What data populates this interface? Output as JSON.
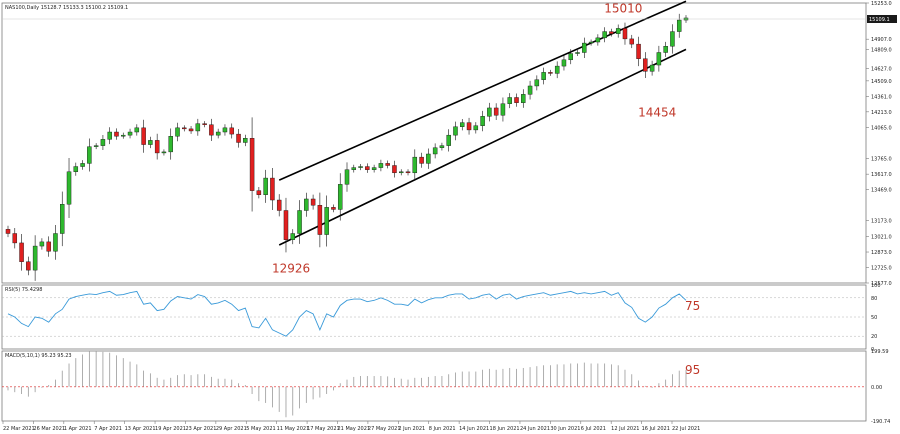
{
  "chart_data": [
    {
      "type": "candlestick",
      "header": "NAS100,Daily  15128.7 15133.3 15100.2 15109.1",
      "yticks": [
        "15253.0",
        "14907.0",
        "14809.0",
        "14627.0",
        "14509.0",
        "14361.0",
        "14213.0",
        "14065.0",
        "13765.0",
        "13617.0",
        "13469.0",
        "13173.0",
        "13021.0",
        "12873.0",
        "12725.0",
        "12577.0"
      ],
      "price_tag": "15109.1",
      "ylim": [
        12577,
        15253
      ],
      "xticks": [
        "22 Mar 2021",
        "26 Mar 2021",
        "1 Apr 2021",
        "7 Apr 2021",
        "13 Apr 2021",
        "19 Apr 2021",
        "23 Apr 2021",
        "29 Apr 2021",
        "5 May 2021",
        "11 May 2021",
        "17 May 2021",
        "21 May 2021",
        "27 May 2021",
        "2 Jun 2021",
        "8 Jun 2021",
        "14 Jun 2021",
        "18 Jun 2021",
        "24 Jun 2021",
        "30 Jun 2021",
        "6 Jul 2021",
        "12 Jul 2021",
        "16 Jul 2021",
        "22 Jul 2021"
      ],
      "closes": [
        13050,
        12960,
        12780,
        12700,
        12930,
        12970,
        12880,
        13050,
        13330,
        13640,
        13690,
        13720,
        13880,
        13890,
        13950,
        14020,
        13980,
        13990,
        14020,
        14060,
        13900,
        13940,
        13820,
        13830,
        13980,
        14060,
        14050,
        14030,
        14100,
        14090,
        13990,
        14020,
        14060,
        14000,
        13920,
        13960,
        13460,
        13420,
        13580,
        13370,
        13270,
        12990,
        13050,
        13270,
        13380,
        13320,
        13040,
        13300,
        13280,
        13520,
        13660,
        13680,
        13690,
        13660,
        13680,
        13720,
        13700,
        13630,
        13640,
        13630,
        13780,
        13720,
        13810,
        13870,
        13890,
        13990,
        14070,
        14110,
        14040,
        14080,
        14170,
        14250,
        14180,
        14290,
        14350,
        14300,
        14380,
        14460,
        14520,
        14590,
        14580,
        14650,
        14710,
        14770,
        14780,
        14870,
        14880,
        14920,
        14980,
        14960,
        15010,
        14910,
        14860,
        14720,
        14600,
        14660,
        14780,
        14840,
        14980,
        15090,
        15110
      ],
      "annotations": [
        {
          "text": "15010",
          "date_index": 90,
          "value": 15010
        },
        {
          "text": "14454",
          "date_index": 95,
          "value": 14454
        },
        {
          "text": "12926",
          "date_index": 41,
          "value": 12926
        }
      ],
      "channel": {
        "upper": [
          [
            40,
            13560
          ],
          [
            100,
            15270
          ]
        ],
        "lower": [
          [
            40,
            12940
          ],
          [
            100,
            14810
          ]
        ]
      }
    },
    {
      "type": "line",
      "header": "RSI(5) 75.4298",
      "yticks": [
        "100",
        "80",
        "50",
        "20",
        "0"
      ],
      "levels": [
        80,
        50,
        20
      ],
      "ylim": [
        0,
        100
      ],
      "last_label": "75",
      "values": [
        55,
        50,
        40,
        35,
        50,
        48,
        42,
        55,
        62,
        78,
        82,
        84,
        86,
        85,
        88,
        90,
        84,
        85,
        88,
        90,
        70,
        72,
        60,
        62,
        75,
        82,
        80,
        78,
        85,
        82,
        70,
        72,
        76,
        70,
        60,
        64,
        35,
        33,
        48,
        30,
        25,
        20,
        30,
        50,
        60,
        55,
        30,
        55,
        50,
        68,
        76,
        78,
        78,
        74,
        76,
        80,
        76,
        70,
        70,
        68,
        78,
        72,
        77,
        80,
        80,
        84,
        86,
        86,
        78,
        80,
        84,
        86,
        78,
        84,
        86,
        78,
        82,
        84,
        86,
        88,
        84,
        86,
        88,
        90,
        86,
        88,
        86,
        88,
        90,
        84,
        88,
        72,
        65,
        48,
        42,
        50,
        64,
        70,
        80,
        86,
        76
      ]
    },
    {
      "type": "bar",
      "header": "MACD(5,10,1) 95.23 95.23",
      "yticks": [
        "199.59",
        "0.00",
        "-190.74"
      ],
      "ylim": [
        -190.74,
        199.59
      ],
      "last_label": "95",
      "values": [
        -20,
        -30,
        -40,
        -55,
        -30,
        -5,
        10,
        40,
        90,
        130,
        160,
        180,
        200,
        200,
        195,
        190,
        175,
        160,
        140,
        125,
        90,
        75,
        50,
        40,
        50,
        65,
        70,
        65,
        70,
        70,
        55,
        45,
        45,
        40,
        20,
        10,
        -40,
        -80,
        -90,
        -115,
        -140,
        -170,
        -160,
        -120,
        -90,
        -70,
        -60,
        -40,
        -20,
        20,
        40,
        55,
        60,
        60,
        60,
        60,
        58,
        50,
        45,
        40,
        50,
        50,
        55,
        60,
        60,
        70,
        80,
        85,
        85,
        85,
        95,
        100,
        95,
        100,
        105,
        100,
        105,
        110,
        115,
        120,
        120,
        125,
        125,
        130,
        130,
        135,
        130,
        130,
        130,
        125,
        120,
        95,
        70,
        35,
        5,
        -5,
        20,
        40,
        70,
        90,
        95
      ]
    }
  ]
}
